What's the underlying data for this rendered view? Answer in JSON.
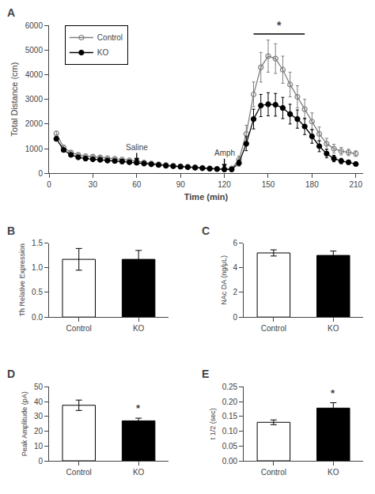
{
  "chart_data": [
    {
      "type": "line",
      "title": "A",
      "x": [
        5,
        10,
        15,
        20,
        25,
        30,
        35,
        40,
        45,
        50,
        55,
        60,
        65,
        70,
        75,
        80,
        85,
        90,
        95,
        100,
        105,
        110,
        115,
        120,
        125,
        130,
        135,
        140,
        145,
        150,
        155,
        160,
        165,
        170,
        175,
        180,
        185,
        190,
        195,
        200,
        205,
        210
      ],
      "series": [
        {
          "name": "Control",
          "color": "#808080",
          "marker": "circle-open",
          "values": [
            1620,
            1050,
            850,
            750,
            700,
            680,
            650,
            620,
            590,
            560,
            530,
            500,
            440,
            400,
            370,
            340,
            310,
            290,
            270,
            250,
            220,
            200,
            185,
            170,
            200,
            550,
            1600,
            3200,
            4300,
            4750,
            4650,
            4200,
            3600,
            3100,
            2600,
            2100,
            1600,
            1200,
            1000,
            900,
            850,
            800
          ],
          "errors": [
            80,
            70,
            60,
            55,
            50,
            45,
            45,
            40,
            40,
            38,
            35,
            35,
            35,
            30,
            28,
            28,
            25,
            25,
            22,
            20,
            20,
            18,
            18,
            15,
            40,
            150,
            350,
            500,
            600,
            650,
            600,
            550,
            500,
            450,
            400,
            350,
            280,
            220,
            180,
            150,
            130,
            110
          ]
        },
        {
          "name": "KO",
          "color": "#000000",
          "marker": "circle",
          "values": [
            1400,
            950,
            750,
            650,
            600,
            570,
            550,
            520,
            500,
            480,
            450,
            430,
            400,
            370,
            340,
            310,
            290,
            270,
            250,
            230,
            210,
            190,
            175,
            160,
            160,
            420,
            1200,
            2200,
            2750,
            2800,
            2780,
            2650,
            2400,
            2200,
            1900,
            1500,
            1100,
            800,
            600,
            500,
            450,
            380
          ],
          "errors": [
            80,
            65,
            55,
            50,
            45,
            42,
            40,
            38,
            35,
            32,
            30,
            30,
            28,
            26,
            25,
            23,
            22,
            20,
            18,
            18,
            16,
            15,
            14,
            13,
            35,
            120,
            280,
            400,
            450,
            470,
            460,
            430,
            400,
            370,
            330,
            280,
            220,
            170,
            130,
            110,
            90,
            75
          ]
        }
      ],
      "xlabel": "Time (min)",
      "ylabel": "Total Distance (cm)",
      "xlim": [
        0,
        215
      ],
      "xticks": [
        0,
        30,
        60,
        90,
        120,
        150,
        180,
        210
      ],
      "ylim": [
        0,
        6000
      ],
      "yticks": [
        0,
        1000,
        2000,
        3000,
        4000,
        5000,
        6000
      ],
      "grid": false,
      "legend": "upper left",
      "annotations": [
        {
          "text": "Saline",
          "x": 60,
          "y": 420,
          "y_text": 1050
        },
        {
          "text": "Amph",
          "x": 120,
          "y": 170,
          "y_text": 820
        },
        {
          "text": "*",
          "x": [
            140,
            175
          ],
          "y": 5650
        }
      ]
    },
    {
      "type": "bar",
      "title": "B",
      "categories": [
        "Control",
        "KO"
      ],
      "values": [
        1.17,
        1.17
      ],
      "errors": [
        0.22,
        0.18
      ],
      "colors": [
        "white",
        "black"
      ],
      "ylabel": "Th Relative Expression",
      "ylim": [
        0,
        1.5
      ],
      "yticks": [
        {
          "value": 0,
          "label": "0.0"
        },
        0.5,
        {
          "value": 1,
          "label": "1.0"
        },
        1.5
      ],
      "grid": false
    },
    {
      "type": "bar",
      "title": "C",
      "categories": [
        "Control",
        "KO"
      ],
      "values": [
        5.2,
        5.0
      ],
      "errors": [
        0.25,
        0.35
      ],
      "colors": [
        "white",
        "black"
      ],
      "ylabel": "NAc DA (ng/μL)",
      "ylim": [
        0,
        6
      ],
      "yticks": [
        0,
        2,
        4,
        6
      ],
      "grid": false
    },
    {
      "type": "bar",
      "title": "D",
      "categories": [
        "Control",
        "KO"
      ],
      "values": [
        37.5,
        27.0
      ],
      "errors": [
        3.5,
        1.8
      ],
      "colors": [
        "white",
        "black"
      ],
      "ylabel": "Peak Amplitude (pA)",
      "ylim": [
        0,
        50
      ],
      "yticks": [
        0,
        10,
        20,
        30,
        40,
        50
      ],
      "grid": false,
      "annotations": [
        {
          "text": "*",
          "category": "KO"
        }
      ]
    },
    {
      "type": "bar",
      "title": "E",
      "categories": [
        "Control",
        "KO"
      ],
      "values": [
        0.13,
        0.178
      ],
      "errors": [
        0.008,
        0.018
      ],
      "colors": [
        "white",
        "black"
      ],
      "ylabel": "t 1/2 (sec)",
      "ylim": [
        0,
        0.25
      ],
      "yticks": [
        {
          "value": 0,
          "label": "0.00"
        },
        0.05,
        {
          "value": 0.1,
          "label": "0.10"
        },
        0.15,
        {
          "value": 0.2,
          "label": "0.20"
        },
        0.25
      ],
      "grid": false,
      "annotations": [
        {
          "text": "*",
          "category": "KO"
        }
      ]
    }
  ]
}
